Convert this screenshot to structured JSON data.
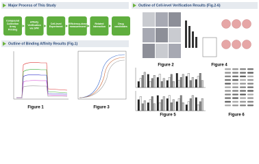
{
  "left": {
    "process": {
      "title": "Major Process of This Study",
      "steps": [
        "Compound Collection Array Printing",
        "Affinity Verification via SPR",
        "Cell-level Experiment",
        "Efficiency-dose measurement",
        "Related Interaction",
        "Drug candidates"
      ]
    },
    "binding": {
      "title": "Outline of Binding Affinity Results (Fig.1)",
      "figures": [
        "Figure 1",
        "Figure 3"
      ]
    }
  },
  "right": {
    "title": "Outline of Cell-level Verification Results (Fig.2-6)",
    "figures": [
      "Figure 2",
      "Figure 4",
      "Figure 5",
      "Figure 6"
    ]
  }
}
